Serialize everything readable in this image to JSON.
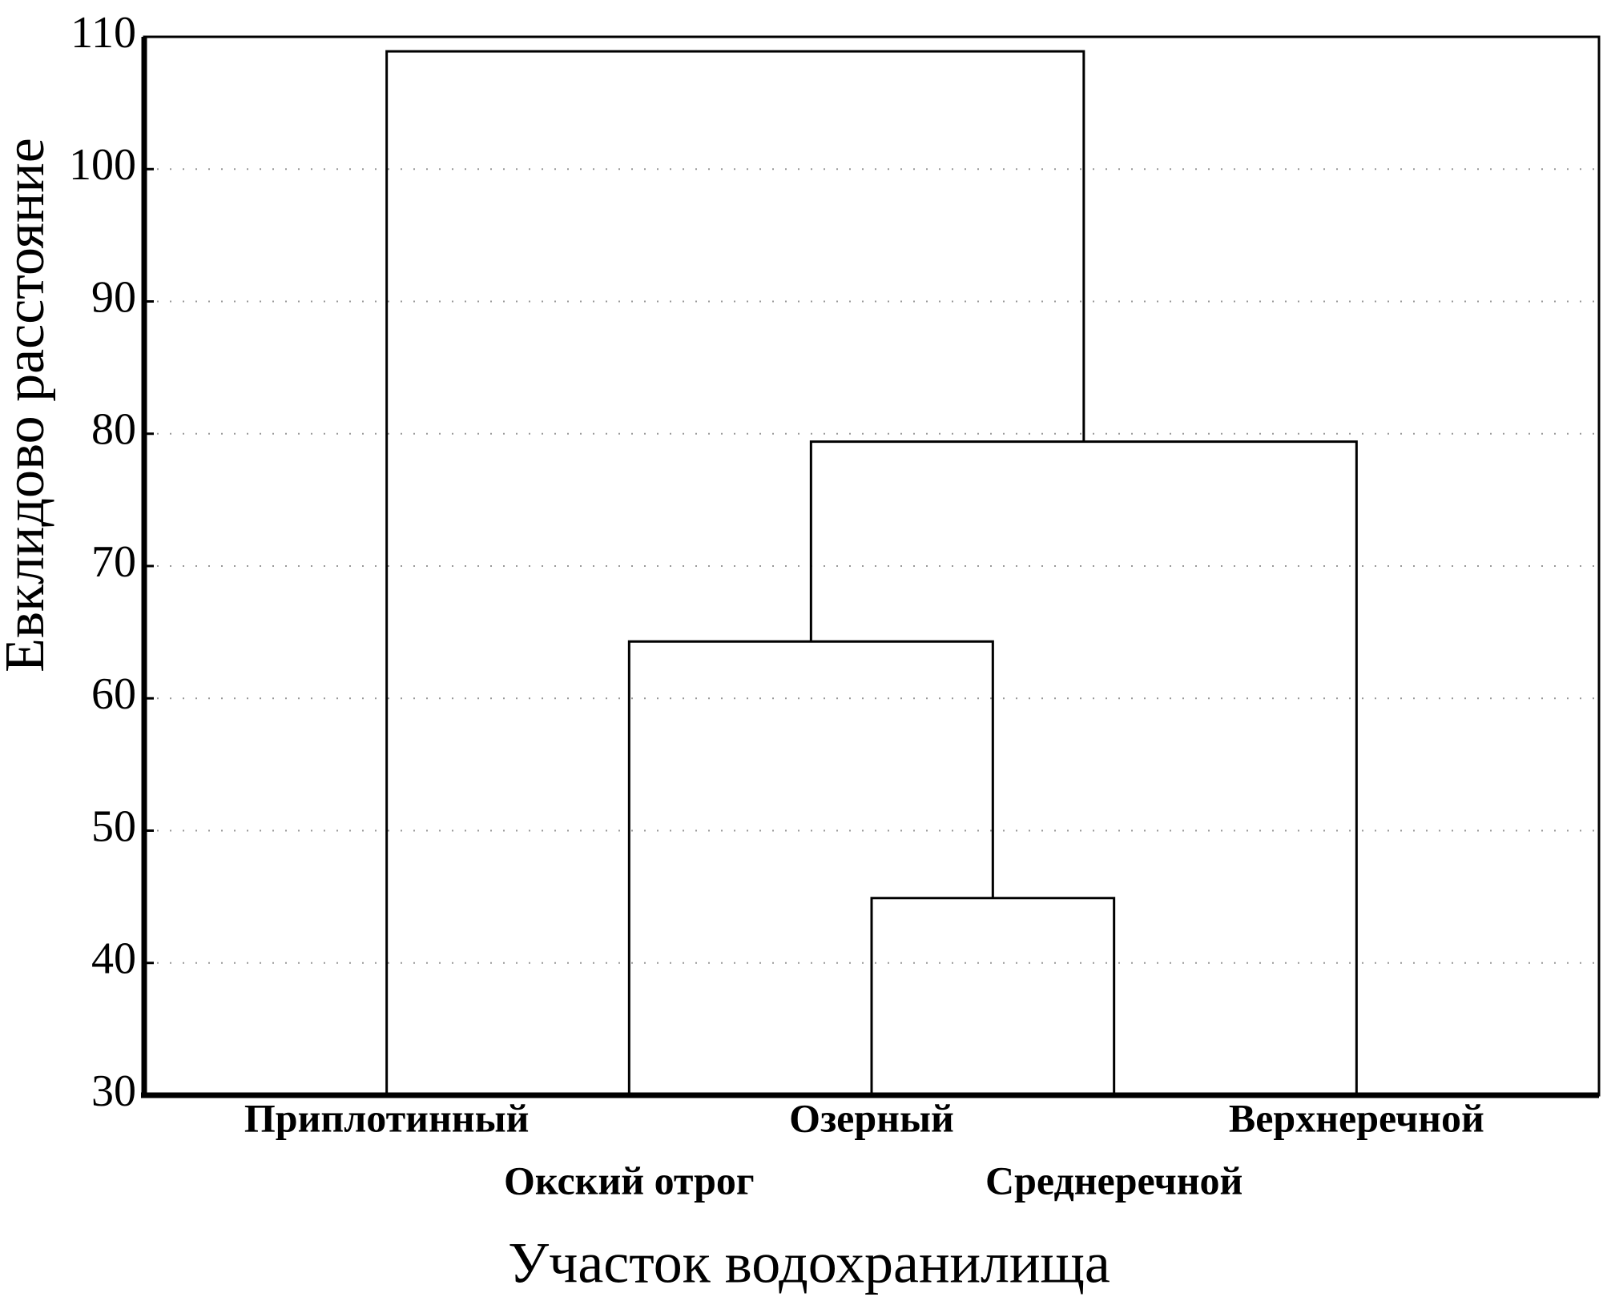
{
  "chart_data": {
    "type": "dendrogram",
    "x_label": "Участок водохранилища",
    "y_label": "Евклидово расстояние",
    "categories": [
      "Приплотинный",
      "Окский отрог",
      "Озерный",
      "Среднеречной",
      "Верхнеречной"
    ],
    "merges": [
      {
        "left": 2,
        "right": 3,
        "height": 44.9
      },
      {
        "left": 1,
        "right": 5,
        "height": 64.3
      },
      {
        "left": 6,
        "right": 4,
        "height": 79.4
      },
      {
        "left": 0,
        "right": 7,
        "height": 108.9
      }
    ],
    "color": "#000000",
    "ylim": [
      30,
      110
    ],
    "yticks": [
      30,
      40,
      50,
      60,
      70,
      80,
      90,
      100,
      110
    ],
    "grid": true
  }
}
